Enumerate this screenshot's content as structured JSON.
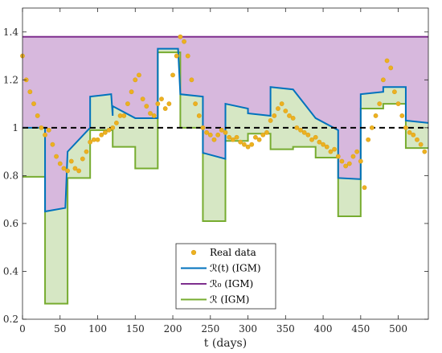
{
  "chart_data": {
    "type": "line",
    "xlabel": "t (days)",
    "xlim": [
      0,
      540
    ],
    "ylim": [
      0.2,
      1.5
    ],
    "x_ticks": [
      0,
      50,
      100,
      150,
      200,
      250,
      300,
      350,
      400,
      450,
      500
    ],
    "y_ticks": [
      0.2,
      0.4,
      0.6,
      0.8,
      1,
      1.2,
      1.4
    ],
    "x_tick_labels": [
      "0",
      "50",
      "100",
      "150",
      "200",
      "250",
      "300",
      "350",
      "400",
      "450",
      "500"
    ],
    "y_tick_labels": [
      "0.2",
      "0.4",
      "0.6",
      "0.8",
      "1",
      "1.2",
      "1.4"
    ],
    "grid": false,
    "legend_position": "bottom-center",
    "legend": [
      {
        "label": "Real data",
        "kind": "marker",
        "color": "#EDB120"
      },
      {
        "label": "ℛ(t) (IGM)",
        "kind": "line",
        "color": "#0072BD"
      },
      {
        "label": "ℛ₀ (IGM)",
        "kind": "line",
        "color": "#7E2F8E"
      },
      {
        "label": "ℛ (IGM)",
        "kind": "line",
        "color": "#77AC30"
      }
    ],
    "reference_line": {
      "y": 1,
      "style": "dashed",
      "color": "#000000"
    },
    "r0": 1.38,
    "colors": {
      "upper_fill": "#D7B8DD",
      "lower_fill": "#D6E7C4",
      "r0_line": "#7E2F8E",
      "rt_line": "#0072BD",
      "rlow_line": "#77AC30",
      "marker_face": "#EDB120",
      "marker_edge": "#D9A21D"
    },
    "series": [
      {
        "name": "ℛ(t) (IGM)",
        "x": [
          0,
          30,
          30,
          57,
          57,
          60,
          60,
          90,
          90,
          118,
          118,
          120,
          120,
          150,
          150,
          180,
          180,
          207,
          207,
          210,
          210,
          240,
          240,
          270,
          270,
          300,
          300,
          330,
          330,
          360,
          360,
          390,
          390,
          420,
          420,
          450,
          450,
          480,
          480,
          510,
          510,
          540
        ],
        "y": [
          1.0,
          1.0,
          0.65,
          0.665,
          0.665,
          0.9,
          0.9,
          1.0,
          1.13,
          1.14,
          1.14,
          1.05,
          1.09,
          1.04,
          1.04,
          1.04,
          1.33,
          1.33,
          1.33,
          1.14,
          1.14,
          1.13,
          0.895,
          0.87,
          1.1,
          1.08,
          1.06,
          1.05,
          1.17,
          1.16,
          1.16,
          1.04,
          1.04,
          0.99,
          0.79,
          0.785,
          1.14,
          1.15,
          1.17,
          1.17,
          1.03,
          1.02
        ]
      },
      {
        "name": "ℛ (IGM)",
        "x": [
          0,
          30,
          30,
          60,
          60,
          90,
          90,
          120,
          120,
          150,
          150,
          180,
          180,
          210,
          210,
          240,
          240,
          270,
          270,
          300,
          300,
          330,
          330,
          360,
          360,
          390,
          390,
          420,
          420,
          450,
          450,
          480,
          480,
          510,
          510,
          540
        ],
        "y": [
          0.795,
          0.795,
          0.265,
          0.265,
          0.79,
          0.79,
          0.99,
          0.99,
          0.92,
          0.92,
          0.83,
          0.83,
          1.315,
          1.315,
          1.0,
          1.0,
          0.61,
          0.61,
          0.945,
          0.945,
          0.975,
          0.975,
          0.91,
          0.91,
          0.92,
          0.92,
          0.875,
          0.875,
          0.63,
          0.63,
          1.08,
          1.08,
          1.1,
          1.1,
          0.915,
          0.915
        ]
      },
      {
        "name": "Real data",
        "type": "scatter",
        "x": [
          0,
          5,
          10,
          15,
          20,
          25,
          30,
          35,
          40,
          45,
          50,
          55,
          60,
          65,
          70,
          75,
          80,
          85,
          90,
          95,
          100,
          105,
          110,
          115,
          120,
          125,
          130,
          135,
          140,
          145,
          150,
          155,
          160,
          165,
          170,
          175,
          180,
          185,
          190,
          195,
          200,
          205,
          210,
          215,
          220,
          225,
          230,
          235,
          240,
          245,
          250,
          255,
          260,
          265,
          270,
          275,
          280,
          285,
          290,
          295,
          300,
          305,
          310,
          315,
          320,
          325,
          330,
          335,
          340,
          345,
          350,
          355,
          360,
          365,
          370,
          375,
          380,
          385,
          390,
          395,
          400,
          405,
          410,
          415,
          420,
          425,
          430,
          435,
          440,
          445,
          450,
          455,
          460,
          465,
          470,
          475,
          480,
          485,
          490,
          495,
          500,
          505,
          510,
          515,
          520,
          525,
          530,
          535
        ],
        "y": [
          1.3,
          1.2,
          1.15,
          1.1,
          1.05,
          1.0,
          0.97,
          0.99,
          0.93,
          0.88,
          0.85,
          0.83,
          0.82,
          0.86,
          0.83,
          0.82,
          0.87,
          0.9,
          0.94,
          0.95,
          0.95,
          0.97,
          0.98,
          0.99,
          1.0,
          1.02,
          1.05,
          1.05,
          1.1,
          1.15,
          1.2,
          1.22,
          1.12,
          1.09,
          1.06,
          1.05,
          1.1,
          1.12,
          1.08,
          1.1,
          1.22,
          1.3,
          1.38,
          1.36,
          1.3,
          1.2,
          1.1,
          1.05,
          1.0,
          0.98,
          0.97,
          0.95,
          0.97,
          0.99,
          0.98,
          0.96,
          0.95,
          0.96,
          0.94,
          0.93,
          0.92,
          0.93,
          0.96,
          0.95,
          0.97,
          0.98,
          1.03,
          1.05,
          1.08,
          1.1,
          1.07,
          1.05,
          1.04,
          1.0,
          0.99,
          0.98,
          0.97,
          0.95,
          0.96,
          0.94,
          0.93,
          0.92,
          0.9,
          0.91,
          0.88,
          0.86,
          0.84,
          0.85,
          0.88,
          0.9,
          0.86,
          0.75,
          0.95,
          1.0,
          1.05,
          1.1,
          1.2,
          1.28,
          1.25,
          1.15,
          1.1,
          1.05,
          1.0,
          0.98,
          0.97,
          0.95,
          0.93,
          0.9
        ]
      }
    ]
  }
}
